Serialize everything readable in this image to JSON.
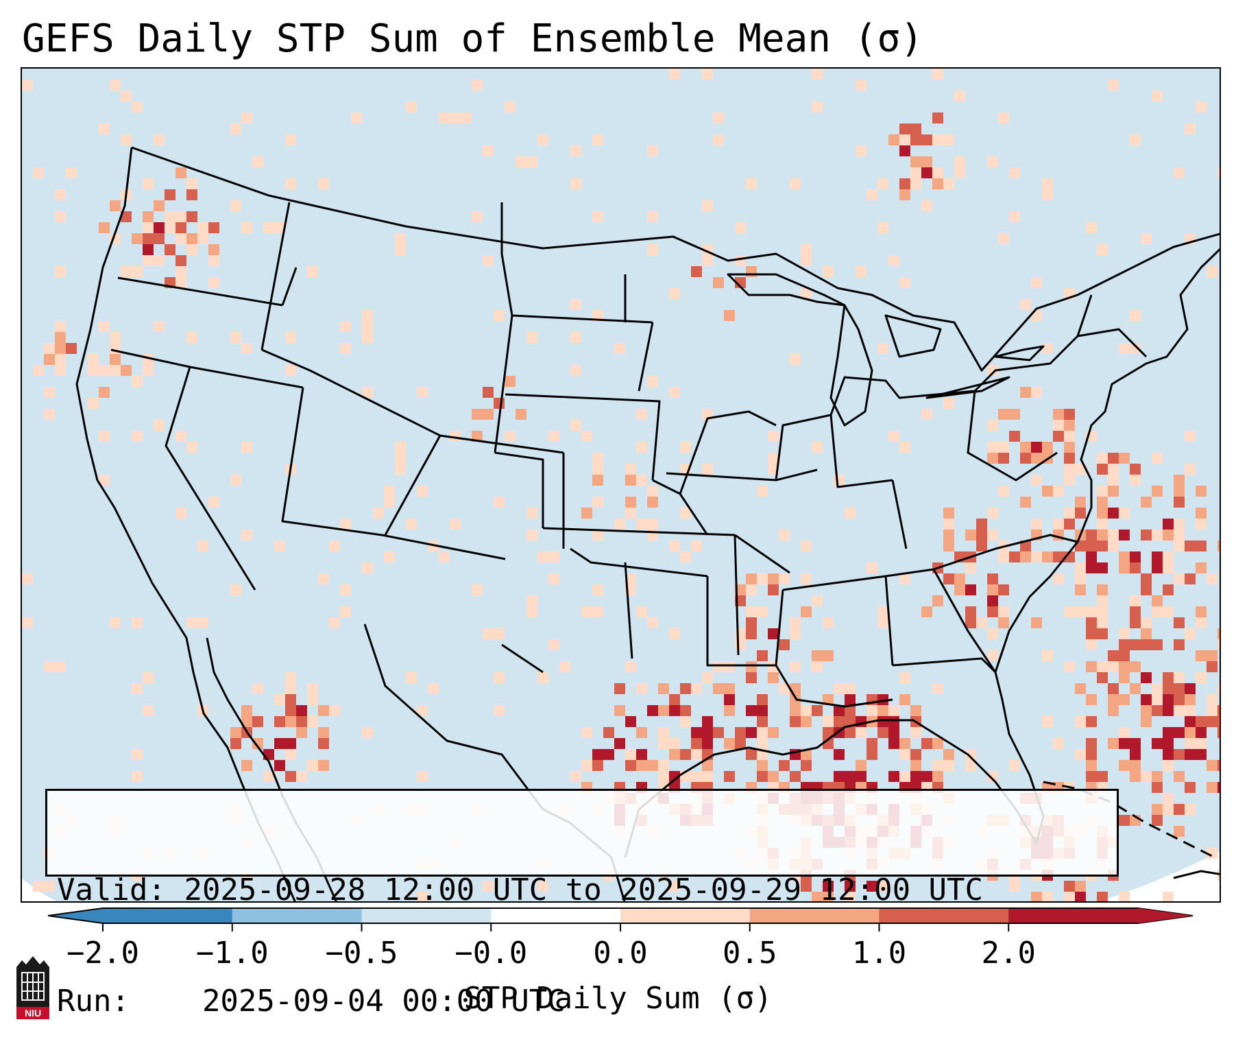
{
  "title": "GEFS Daily STP Sum of Ensemble Mean (σ)",
  "info": {
    "valid_label": "Valid:",
    "valid_value": "2025-09-28 12:00 UTC to 2025-09-29 12:00 UTC",
    "run_label": "Run:",
    "run_value": "2025-09-04 00:00 UTC"
  },
  "colorbar": {
    "label": "STP Daily Sum (σ)",
    "ticks": [
      "−2.0",
      "−1.0",
      "−0.5",
      "−0.0",
      "0.0",
      "0.5",
      "1.0",
      "2.0"
    ],
    "colors": [
      "#3a87c0",
      "#8ec0e0",
      "#d1e5f0",
      "#ffffff",
      "#fddbc7",
      "#f4a582",
      "#d6604d",
      "#b2182b"
    ],
    "extend": "both"
  },
  "logo": {
    "text": "NIU",
    "icon": "university-logo-icon"
  },
  "map": {
    "projection": "lambert-conformal",
    "region": "CONUS",
    "background_color": "#d1e5f0",
    "land_border_color": "#000000"
  }
}
